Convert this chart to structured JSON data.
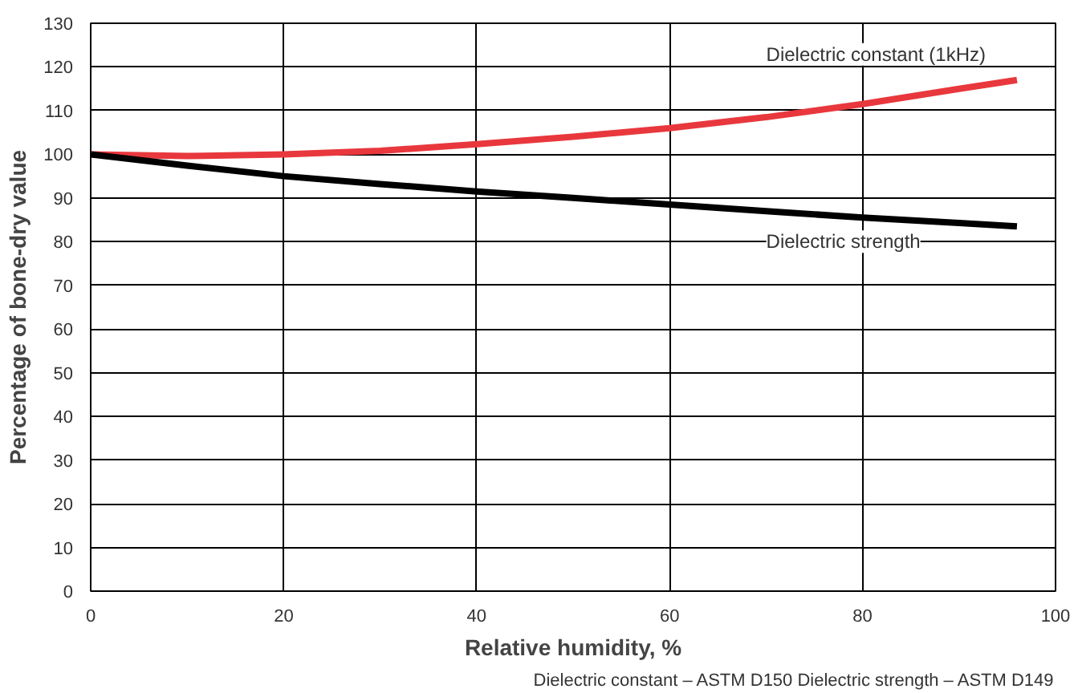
{
  "chart_data": {
    "type": "line",
    "xlabel": "Relative humidity, %",
    "ylabel": "Percentage of bone-dry value",
    "xlim": [
      0,
      100
    ],
    "ylim": [
      0,
      130
    ],
    "xticks": [
      0,
      20,
      40,
      60,
      80,
      100
    ],
    "yticks": [
      0,
      10,
      20,
      30,
      40,
      50,
      60,
      70,
      80,
      90,
      100,
      110,
      120,
      130
    ],
    "grid": true,
    "legend": false,
    "marker": "none",
    "line_style": "solid",
    "annotations": [
      "Dielectric constant – ASTM D150 Dielectric strength – ASTM D149"
    ],
    "series": [
      {
        "name": "Dielectric constant (1kHz)",
        "color": "#e8383d",
        "x": [
          0,
          10,
          20,
          30,
          40,
          50,
          60,
          70,
          80,
          90,
          96
        ],
        "values": [
          100,
          99.6,
          100,
          100.8,
          102.3,
          104,
          106,
          108.5,
          111.5,
          115,
          117
        ]
      },
      {
        "name": "Dielectric strength",
        "color": "#000000",
        "x": [
          0,
          10,
          20,
          30,
          40,
          50,
          60,
          70,
          80,
          90,
          96
        ],
        "values": [
          100,
          97.4,
          95,
          93.2,
          91.5,
          90,
          88.5,
          87,
          85.5,
          84.3,
          83.5
        ]
      }
    ]
  }
}
